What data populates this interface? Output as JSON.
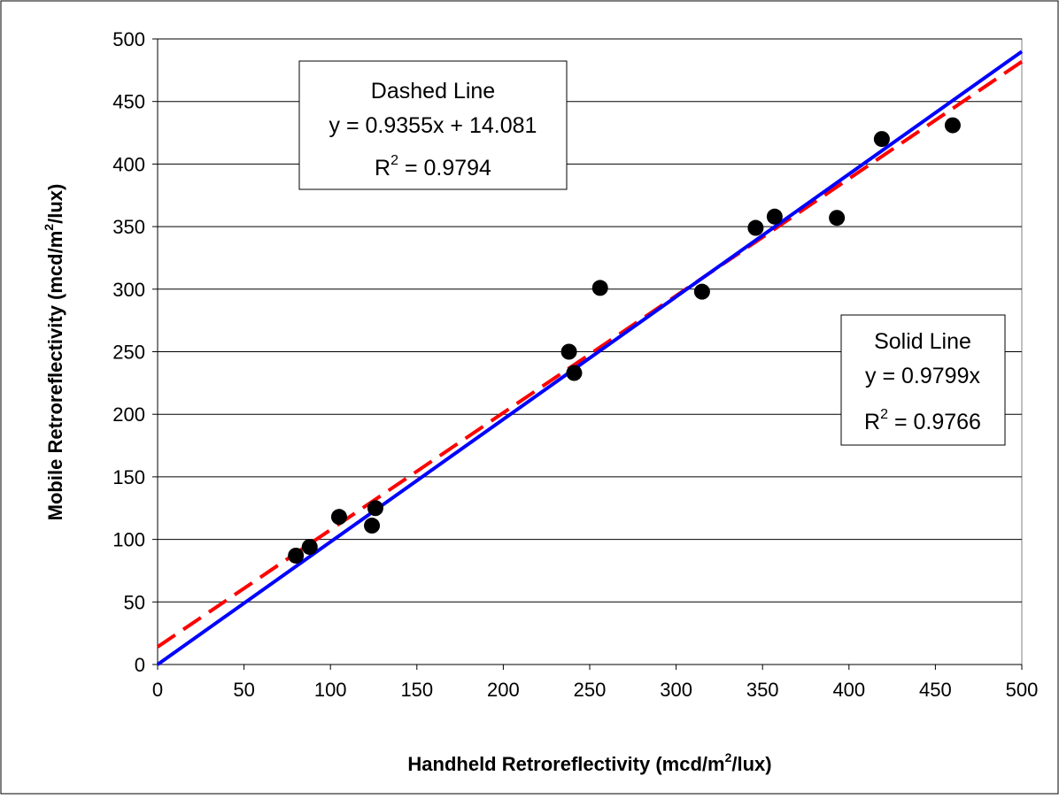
{
  "chart_data": {
    "type": "scatter",
    "xlabel": "Handheld Retroreflectivity (mcd/m",
    "xlabel_sup": "2",
    "xlabel_tail": "/lux)",
    "ylabel": "Mobile Retroreflectivity (mcd/m",
    "ylabel_sup": "2",
    "ylabel_tail": "/lux)",
    "xlim": [
      0,
      500
    ],
    "ylim": [
      0,
      500
    ],
    "xticks": [
      "0",
      "50",
      "100",
      "150",
      "200",
      "250",
      "300",
      "350",
      "400",
      "450",
      "500"
    ],
    "yticks": [
      "0",
      "50",
      "100",
      "150",
      "200",
      "250",
      "300",
      "350",
      "400",
      "450",
      "500"
    ],
    "grid": "horizontal",
    "colors": {
      "points": "#000000",
      "solid_line": "#0000ff",
      "dashed_line": "#ff0000"
    },
    "points": [
      {
        "x": 80,
        "y": 87
      },
      {
        "x": 88,
        "y": 94
      },
      {
        "x": 105,
        "y": 118
      },
      {
        "x": 124,
        "y": 111
      },
      {
        "x": 126,
        "y": 125
      },
      {
        "x": 238,
        "y": 250
      },
      {
        "x": 241,
        "y": 233
      },
      {
        "x": 256,
        "y": 301
      },
      {
        "x": 315,
        "y": 298
      },
      {
        "x": 346,
        "y": 349
      },
      {
        "x": 357,
        "y": 358
      },
      {
        "x": 393,
        "y": 357
      },
      {
        "x": 419,
        "y": 420
      },
      {
        "x": 460,
        "y": 431
      }
    ],
    "fits": [
      {
        "style": "dashed",
        "slope": 0.9355,
        "intercept": 14.081
      },
      {
        "style": "solid",
        "slope": 0.9799,
        "intercept": 0
      }
    ],
    "annotations": {
      "dashed": {
        "title": "Dashed Line",
        "equation": "y = 0.9355x + 14.081",
        "r2_prefix": "R",
        "r2_sup": "2",
        "r2_value": " = 0.9794"
      },
      "solid": {
        "title": "Solid Line",
        "equation": "y = 0.9799x",
        "r2_prefix": "R",
        "r2_sup": "2",
        "r2_value": " = 0.9766"
      }
    }
  }
}
